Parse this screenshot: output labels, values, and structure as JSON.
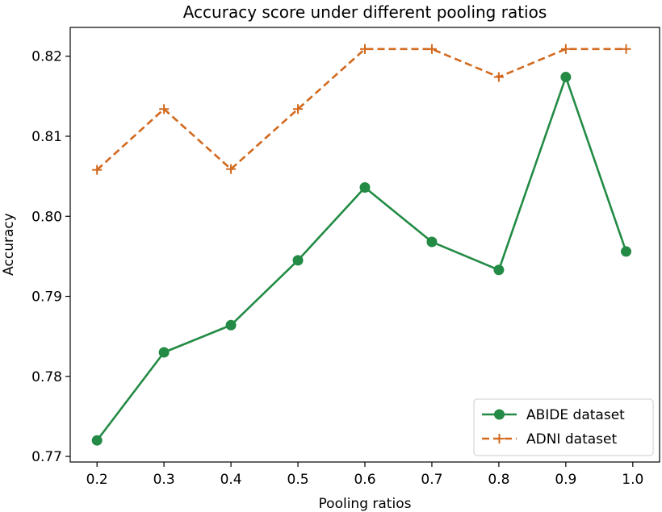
{
  "chart_data": {
    "type": "line",
    "title": "Accuracy score under different pooling ratios",
    "xlabel": "Pooling ratios",
    "ylabel": "Accuracy",
    "xlim": [
      0.16,
      1.04
    ],
    "ylim": [
      0.7693,
      0.8236
    ],
    "xticks": [
      0.2,
      0.3,
      0.4,
      0.5,
      0.6,
      0.7,
      0.8,
      0.9,
      1.0
    ],
    "xtick_labels": [
      "0.2",
      "0.3",
      "0.4",
      "0.5",
      "0.6",
      "0.7",
      "0.8",
      "0.9",
      "1.0"
    ],
    "yticks": [
      0.77,
      0.78,
      0.79,
      0.8,
      0.81,
      0.82
    ],
    "ytick_labels": [
      "0.77",
      "0.78",
      "0.79",
      "0.80",
      "0.81",
      "0.82"
    ],
    "grid": false,
    "legend_position": "bottom-right",
    "series": [
      {
        "name": "ABIDE dataset",
        "color": "#238b45",
        "style": "solid",
        "marker": "circle",
        "x": [
          0.2,
          0.3,
          0.4,
          0.5,
          0.6,
          0.7,
          0.8,
          0.9,
          0.99
        ],
        "y": [
          0.772,
          0.783,
          0.7864,
          0.7945,
          0.8036,
          0.7968,
          0.7933,
          0.8174,
          0.7956
        ]
      },
      {
        "name": "ADNI dataset",
        "color": "#d2691e",
        "style": "dashed",
        "marker": "plus",
        "x": [
          0.2,
          0.3,
          0.4,
          0.5,
          0.6,
          0.7,
          0.8,
          0.9,
          0.99
        ],
        "y": [
          0.8058,
          0.8134,
          0.8059,
          0.8134,
          0.8209,
          0.8209,
          0.8174,
          0.8209,
          0.8209
        ]
      }
    ]
  }
}
